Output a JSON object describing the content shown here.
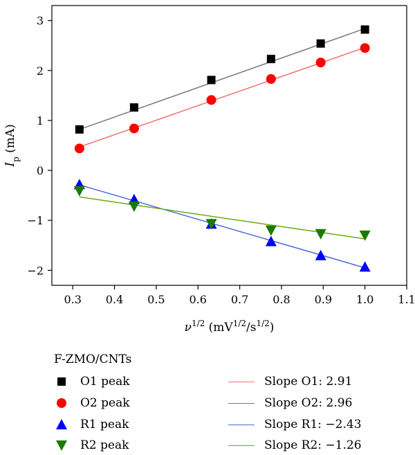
{
  "chart_data": {
    "type": "scatter",
    "title": "",
    "xlabel": "ν1/2 (mV1/2/s1/2)",
    "ylabel": "Ip (mA)",
    "xlim": [
      0.25,
      1.1
    ],
    "ylim": [
      -2.3,
      3.3
    ],
    "x_ticks": [
      0.3,
      0.4,
      0.5,
      0.6,
      0.7,
      0.8,
      0.9,
      1.0,
      1.1
    ],
    "y_ticks": [
      -2,
      -1,
      0,
      1,
      2,
      3
    ],
    "x": [
      0.316,
      0.447,
      0.632,
      0.775,
      0.894,
      1.0
    ],
    "series": [
      {
        "name": "O1 peak",
        "marker": "square",
        "color": "#000000",
        "values": [
          0.82,
          1.26,
          1.81,
          2.23,
          2.54,
          2.82
        ]
      },
      {
        "name": "O2 peak",
        "marker": "circle",
        "color": "#ff0000",
        "values": [
          0.44,
          0.84,
          1.41,
          1.83,
          2.16,
          2.45
        ]
      },
      {
        "name": "R1 peak",
        "marker": "triangle-up",
        "color": "#0000ff",
        "values": [
          -0.28,
          -0.58,
          -1.07,
          -1.42,
          -1.7,
          -1.93
        ]
      },
      {
        "name": "R2 peak",
        "marker": "triangle-down",
        "color": "#1a7a00",
        "values": [
          -0.41,
          -0.72,
          -1.07,
          -1.2,
          -1.27,
          -1.3
        ]
      }
    ],
    "fit_lines": [
      {
        "name": "Slope O1: 2.91",
        "color": "#f07070",
        "x": [
          0.316,
          1.0
        ],
        "y": [
          0.47,
          2.46
        ]
      },
      {
        "name": "Slope O2: 2.96",
        "color": "#777777",
        "x": [
          0.316,
          1.0
        ],
        "y": [
          0.82,
          2.84
        ]
      },
      {
        "name": "Slope R1: −2.43",
        "color": "#4a6ad8",
        "x": [
          0.316,
          1.0
        ],
        "y": [
          -0.29,
          -1.95
        ]
      },
      {
        "name": "Slope R2: −1.26",
        "color": "#6aaa10",
        "x": [
          0.316,
          1.0
        ],
        "y": [
          -0.53,
          -1.37
        ]
      }
    ],
    "legend_title": "F-ZMO/CNTs",
    "legend_placement": "below"
  }
}
